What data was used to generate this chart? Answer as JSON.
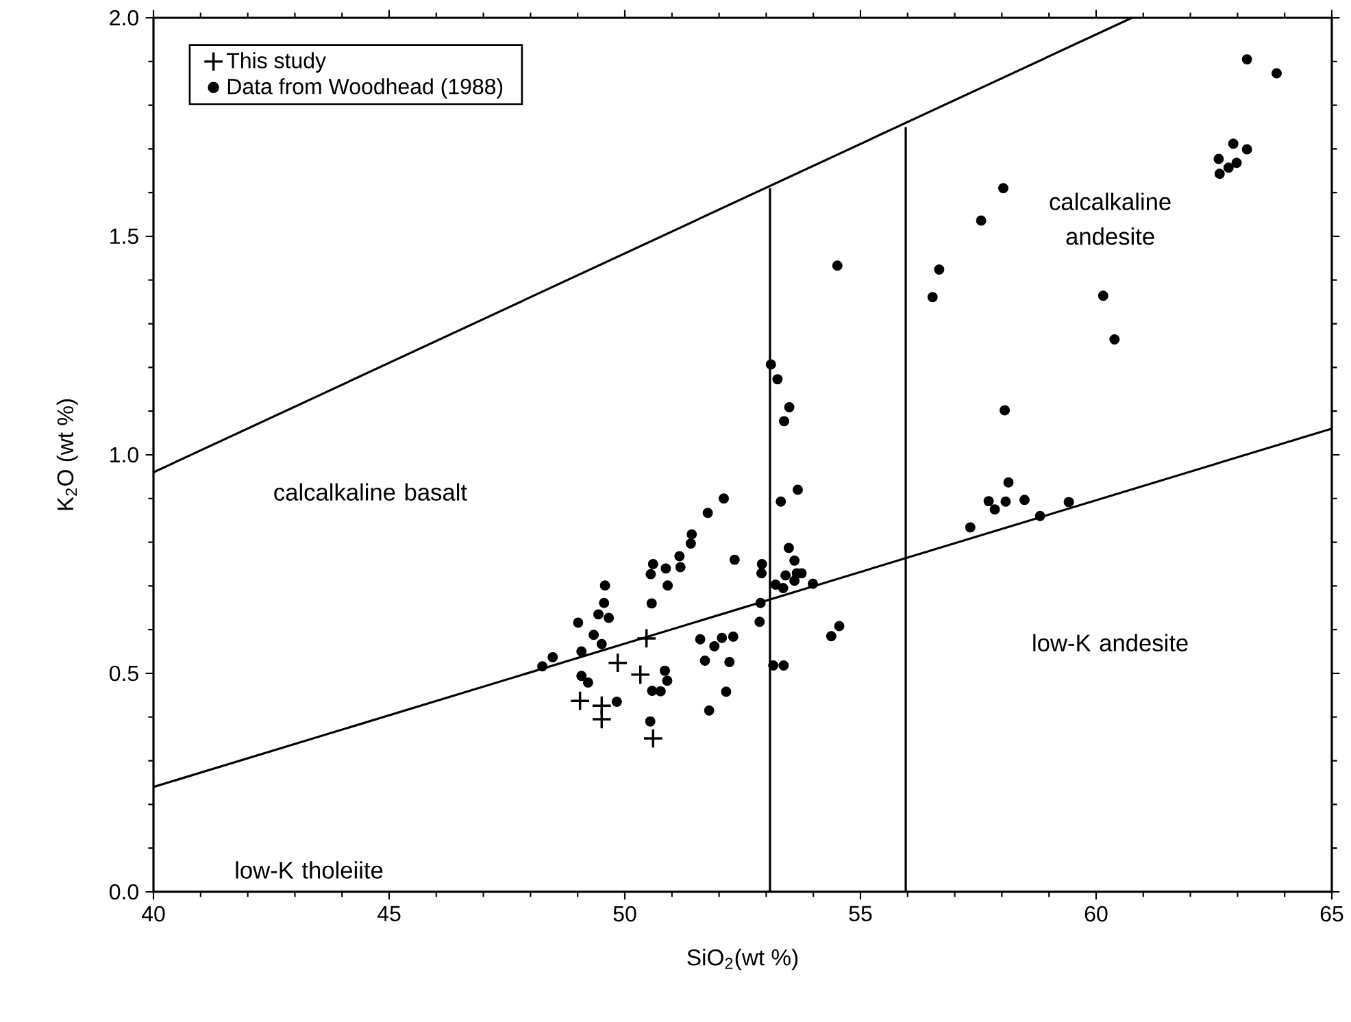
{
  "chart_data": {
    "type": "scatter",
    "xlabel": "SiO$_{2}$(wt %)",
    "ylabel": "K$_{2}$O (wt %)",
    "xlim": [
      40,
      65
    ],
    "ylim": [
      0,
      2.0
    ],
    "xticks": [
      40,
      45,
      50,
      55,
      60,
      65
    ],
    "yticks": [
      {
        "value": 0,
        "label": "0.0"
      },
      {
        "value": 0.5,
        "label": "0.5"
      },
      {
        "value": 1.0,
        "label": "1.0"
      },
      {
        "value": 1.5,
        "label": "1.5"
      },
      {
        "value": 2.0,
        "label": "2.0"
      }
    ],
    "legend": "top left",
    "annotations": [
      "calcalkaline basalt",
      "calcalkaline andesite",
      "low-K andesite",
      "low-K tholeiite"
    ],
    "series": [
      {
        "name": "This study",
        "marker": "cross",
        "color": "#000000",
        "x": [
          50.46,
          49.85,
          50.33,
          49.05,
          49.51,
          49.51,
          50.6
        ],
        "values": [
          0.58,
          0.524,
          0.497,
          0.437,
          0.426,
          0.395,
          0.351
        ]
      },
      {
        "name": "Data from Woodhead (1988)",
        "marker": "circle",
        "color": "#000000",
        "x": [
          52.1,
          51.76,
          51.42,
          51.4,
          51.16,
          51.18,
          50.87,
          50.6,
          50.55,
          50.91,
          52.33,
          49.58,
          49.56,
          49.44,
          49.66,
          50.57,
          49.01,
          49.34,
          49.51,
          49.08,
          48.47,
          48.25,
          49.08,
          49.22,
          49.83,
          50.85,
          50.9,
          50.58,
          50.76,
          50.54,
          51.6,
          51.9,
          52.06,
          52.3,
          51.7,
          52.22,
          52.15,
          51.79,
          52.91,
          52.9,
          52.88,
          52.86,
          53.31,
          53.67,
          53.48,
          53.6,
          53.41,
          53.65,
          53.75,
          53.6,
          53.2,
          53.36,
          53.99,
          53.15,
          53.37,
          54.38,
          54.55,
          53.1,
          53.24,
          53.49,
          53.38,
          57.33,
          63.2,
          63.83,
          62.91,
          63.2,
          62.6,
          62.98,
          62.81,
          62.62,
          58.03,
          57.56,
          56.67,
          56.53,
          54.51,
          60.15,
          60.39,
          58.06,
          58.14,
          57.72,
          58.08,
          58.48,
          57.85,
          58.81,
          59.42
        ],
        "values": [
          0.9,
          0.867,
          0.818,
          0.797,
          0.768,
          0.743,
          0.74,
          0.75,
          0.727,
          0.701,
          0.76,
          0.701,
          0.661,
          0.635,
          0.627,
          0.66,
          0.616,
          0.588,
          0.567,
          0.55,
          0.537,
          0.516,
          0.494,
          0.479,
          0.435,
          0.506,
          0.483,
          0.46,
          0.459,
          0.39,
          0.578,
          0.562,
          0.581,
          0.584,
          0.529,
          0.526,
          0.458,
          0.415,
          0.75,
          0.729,
          0.661,
          0.618,
          0.893,
          0.92,
          0.787,
          0.758,
          0.724,
          0.729,
          0.729,
          0.712,
          0.703,
          0.695,
          0.705,
          0.518,
          0.518,
          0.585,
          0.608,
          1.207,
          1.173,
          1.109,
          1.077,
          0.834,
          1.905,
          1.873,
          1.712,
          1.699,
          1.677,
          1.668,
          1.657,
          1.643,
          1.61,
          1.536,
          1.424,
          1.361,
          1.433,
          1.364,
          1.264,
          1.102,
          0.937,
          0.894,
          0.893,
          0.897,
          0.875,
          0.86,
          0.892
        ]
      },
      {
        "type": "line",
        "marker": "none",
        "color": "#000000",
        "x": [
          40,
          60.76
        ],
        "values": [
          0.96,
          2.0
        ]
      },
      {
        "type": "line",
        "marker": "none",
        "color": "#000000",
        "x": [
          40,
          65
        ],
        "values": [
          0.24,
          1.06
        ]
      },
      {
        "type": "line",
        "marker": "none",
        "color": "#000000",
        "x": [
          53.08,
          53.08
        ],
        "values": [
          0,
          1.61
        ]
      },
      {
        "type": "line",
        "marker": "none",
        "color": "#000000",
        "x": [
          55.96,
          55.96
        ],
        "values": [
          0,
          1.75
        ]
      }
    ]
  }
}
